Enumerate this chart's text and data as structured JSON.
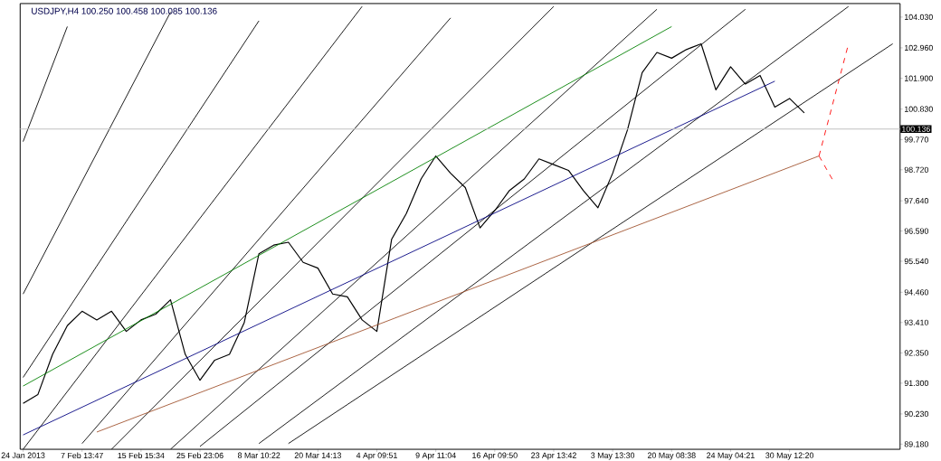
{
  "chart_data": {
    "type": "line",
    "title": "USDJPY,H4 100.250 100.458 100.085 100.136",
    "categories": [
      "24 Jan 2013",
      null,
      null,
      null,
      "7 Feb 13:47",
      null,
      null,
      null,
      "15 Feb 15:34",
      null,
      null,
      null,
      "25 Feb 23:06",
      null,
      null,
      null,
      "8 Mar 10:22",
      null,
      null,
      null,
      "20 Mar 14:13",
      null,
      null,
      null,
      "4 Apr 09:51",
      null,
      null,
      null,
      "9 Apr 11:04",
      null,
      null,
      null,
      "16 Apr 09:50",
      null,
      null,
      null,
      "23 Apr 13:42",
      null,
      null,
      null,
      "3 May 13:30",
      null,
      null,
      null,
      "20 May 08:38",
      null,
      null,
      null,
      "24 May 04:21",
      null,
      null,
      null,
      "30 May 12:20",
      null,
      null,
      null,
      null,
      null,
      null,
      null
    ],
    "ylim": [
      89.0,
      104.5
    ],
    "yticks": [
      {
        "value": 104.03,
        "label": "104.030"
      },
      {
        "value": 102.96,
        "label": "102.960"
      },
      {
        "value": 101.9,
        "label": "101.900"
      },
      {
        "value": 100.83,
        "label": "100.830"
      },
      {
        "value": 99.77,
        "label": "99.770"
      },
      {
        "value": 98.72,
        "label": "98.720"
      },
      {
        "value": 97.64,
        "label": "97.640"
      },
      {
        "value": 96.59,
        "label": "96.590"
      },
      {
        "value": 95.54,
        "label": "95.540"
      },
      {
        "value": 94.46,
        "label": "94.460"
      },
      {
        "value": 93.41,
        "label": "93.410"
      },
      {
        "value": 92.35,
        "label": "92.350"
      },
      {
        "value": 91.3,
        "label": "91.300"
      },
      {
        "value": 90.23,
        "label": "90.230"
      },
      {
        "value": 89.18,
        "label": "89.180"
      }
    ],
    "ref_lines": [
      {
        "axis": "y",
        "value": 100.136,
        "label": "100.136",
        "color": "#c0c0c0"
      }
    ],
    "series": [
      {
        "color": "#000000",
        "values": [
          90.6,
          90.9,
          92.3,
          93.3,
          93.8,
          93.5,
          93.8,
          93.1,
          93.5,
          93.7,
          94.2,
          92.3,
          91.4,
          92.1,
          92.3,
          93.4,
          95.8,
          96.1,
          96.2,
          95.5,
          95.3,
          94.4,
          94.3,
          93.5,
          93.1,
          96.3,
          97.2,
          98.4,
          99.2,
          98.6,
          98.1,
          96.7,
          97.3,
          98.0,
          98.4,
          99.1,
          98.9,
          98.7,
          98.0,
          97.4,
          98.6,
          100.1,
          102.1,
          102.8,
          102.6,
          102.9,
          103.1,
          101.5,
          102.3,
          101.7,
          102.0,
          100.9,
          101.2,
          100.7,
          null,
          null,
          null,
          null,
          null,
          null
        ]
      },
      {
        "type": "line",
        "color": "#000000",
        "values": [
          99.7,
          null,
          null,
          103.7,
          null,
          null,
          null,
          null,
          null,
          null,
          null,
          null,
          null,
          null,
          null,
          null,
          null,
          null,
          null,
          null,
          null,
          null,
          null,
          null,
          null,
          null,
          null,
          null,
          null,
          null,
          null,
          null,
          null,
          null,
          null,
          null,
          null,
          null,
          null,
          null,
          null,
          null,
          null,
          null,
          null,
          null,
          null,
          null,
          null,
          null,
          null,
          null,
          null,
          null,
          null,
          null,
          null,
          null,
          null,
          null
        ]
      },
      {
        "type": "line",
        "color": "#000000",
        "values": [
          94.4,
          null,
          null,
          null,
          null,
          null,
          null,
          null,
          null,
          null,
          104.2,
          null,
          null,
          null,
          null,
          null,
          null,
          null,
          null,
          null,
          null,
          null,
          null,
          null,
          null,
          null,
          null,
          null,
          null,
          null,
          null,
          null,
          null,
          null,
          null,
          null,
          null,
          null,
          null,
          null,
          null,
          null,
          null,
          null,
          null,
          null,
          null,
          null,
          null,
          null,
          null,
          null,
          null,
          null,
          null,
          null,
          null,
          null,
          null,
          null
        ]
      },
      {
        "type": "line",
        "color": "#000000",
        "values": [
          91.5,
          null,
          null,
          null,
          null,
          null,
          null,
          null,
          null,
          null,
          null,
          null,
          null,
          null,
          null,
          null,
          103.9,
          null,
          null,
          null,
          null,
          null,
          null,
          null,
          null,
          null,
          null,
          null,
          null,
          null,
          null,
          null,
          null,
          null,
          null,
          null,
          null,
          null,
          null,
          null,
          null,
          null,
          null,
          null,
          null,
          null,
          null,
          null,
          null,
          null,
          null,
          null,
          null,
          null,
          null,
          null,
          null,
          null,
          null,
          null
        ]
      },
      {
        "type": "line",
        "color": "#000000",
        "values": [
          89.0,
          null,
          null,
          null,
          null,
          null,
          null,
          null,
          null,
          null,
          null,
          null,
          null,
          null,
          null,
          null,
          null,
          null,
          null,
          null,
          null,
          null,
          null,
          104.4,
          null,
          null,
          null,
          null,
          null,
          null,
          null,
          null,
          null,
          null,
          null,
          null,
          null,
          null,
          null,
          null,
          null,
          null,
          null,
          null,
          null,
          null,
          null,
          null,
          null,
          null,
          null,
          null,
          null,
          null,
          null,
          null,
          null,
          null,
          null,
          null
        ]
      },
      {
        "type": "line",
        "color": "#000000",
        "values": [
          null,
          null,
          null,
          null,
          89.2,
          null,
          null,
          null,
          null,
          null,
          null,
          null,
          null,
          null,
          null,
          null,
          null,
          null,
          null,
          null,
          null,
          null,
          null,
          null,
          null,
          null,
          null,
          null,
          null,
          104.0,
          null,
          null,
          null,
          null,
          null,
          null,
          null,
          null,
          null,
          null,
          null,
          null,
          null,
          null,
          null,
          null,
          null,
          null,
          null,
          null,
          null,
          null,
          null,
          null,
          null,
          null,
          null,
          null,
          null,
          null
        ]
      },
      {
        "type": "line",
        "color": "#000000",
        "values": [
          null,
          null,
          null,
          null,
          null,
          null,
          89.0,
          null,
          null,
          null,
          null,
          null,
          null,
          null,
          null,
          null,
          null,
          null,
          null,
          null,
          null,
          null,
          null,
          null,
          null,
          null,
          null,
          null,
          null,
          null,
          null,
          null,
          null,
          null,
          null,
          null,
          104.4,
          null,
          null,
          null,
          null,
          null,
          null,
          null,
          null,
          null,
          null,
          null,
          null,
          null,
          null,
          null,
          null,
          null,
          null,
          null,
          null,
          null,
          null,
          null
        ]
      },
      {
        "type": "line",
        "color": "#000000",
        "values": [
          null,
          null,
          null,
          null,
          null,
          null,
          null,
          null,
          null,
          null,
          89.0,
          null,
          null,
          null,
          null,
          null,
          null,
          null,
          null,
          null,
          null,
          null,
          null,
          null,
          null,
          null,
          null,
          null,
          null,
          null,
          null,
          null,
          null,
          null,
          null,
          null,
          null,
          null,
          null,
          null,
          null,
          null,
          null,
          104.3,
          null,
          null,
          null,
          null,
          null,
          null,
          null,
          null,
          null,
          null,
          null,
          null,
          null,
          null,
          null,
          null
        ]
      },
      {
        "type": "line",
        "color": "#000000",
        "values": [
          null,
          null,
          null,
          null,
          null,
          null,
          null,
          null,
          null,
          null,
          null,
          null,
          89.1,
          null,
          null,
          null,
          null,
          null,
          null,
          null,
          null,
          null,
          null,
          null,
          null,
          null,
          null,
          null,
          null,
          null,
          null,
          null,
          null,
          null,
          null,
          null,
          null,
          null,
          null,
          null,
          null,
          null,
          null,
          null,
          null,
          null,
          null,
          null,
          null,
          104.3,
          null,
          null,
          null,
          null,
          null,
          null,
          null,
          null,
          null,
          null
        ]
      },
      {
        "type": "line",
        "color": "#000000",
        "values": [
          null,
          null,
          null,
          null,
          null,
          null,
          null,
          null,
          null,
          null,
          null,
          null,
          null,
          null,
          null,
          null,
          89.2,
          null,
          null,
          null,
          null,
          null,
          null,
          null,
          null,
          null,
          null,
          null,
          null,
          null,
          null,
          null,
          null,
          null,
          null,
          null,
          null,
          null,
          null,
          null,
          null,
          null,
          null,
          null,
          null,
          null,
          null,
          null,
          null,
          null,
          null,
          null,
          null,
          null,
          null,
          null,
          104.4,
          null,
          null,
          null
        ]
      },
      {
        "type": "line",
        "color": "#000000",
        "values": [
          null,
          null,
          null,
          null,
          null,
          null,
          null,
          null,
          null,
          null,
          null,
          null,
          null,
          null,
          null,
          null,
          null,
          null,
          89.2,
          null,
          null,
          null,
          null,
          null,
          null,
          null,
          null,
          null,
          null,
          null,
          null,
          null,
          null,
          null,
          null,
          null,
          null,
          null,
          null,
          null,
          null,
          null,
          null,
          null,
          null,
          null,
          null,
          null,
          null,
          null,
          null,
          null,
          null,
          null,
          null,
          null,
          null,
          null,
          null,
          103.1
        ]
      },
      {
        "type": "line",
        "color": "#008000",
        "values": [
          91.2,
          null,
          null,
          null,
          null,
          null,
          null,
          null,
          null,
          null,
          null,
          null,
          null,
          null,
          null,
          null,
          null,
          null,
          null,
          null,
          null,
          null,
          null,
          null,
          null,
          null,
          null,
          null,
          null,
          null,
          null,
          null,
          null,
          null,
          null,
          null,
          null,
          null,
          null,
          null,
          null,
          null,
          null,
          null,
          103.7,
          null,
          null,
          null,
          null,
          null,
          null,
          null,
          null,
          null,
          null,
          null,
          null,
          null,
          null,
          null
        ]
      },
      {
        "type": "line",
        "color": "#000080",
        "values": [
          89.5,
          null,
          null,
          null,
          null,
          null,
          null,
          null,
          null,
          null,
          null,
          null,
          null,
          null,
          null,
          null,
          null,
          null,
          null,
          null,
          null,
          null,
          null,
          null,
          null,
          null,
          null,
          null,
          null,
          null,
          null,
          null,
          null,
          null,
          null,
          null,
          null,
          null,
          null,
          null,
          null,
          null,
          null,
          null,
          null,
          null,
          null,
          null,
          null,
          null,
          null,
          101.8,
          null,
          null,
          null,
          null,
          null,
          null,
          null,
          null
        ]
      },
      {
        "type": "line",
        "color": "#a0522d",
        "values": [
          null,
          null,
          null,
          null,
          null,
          89.6,
          null,
          null,
          null,
          null,
          null,
          null,
          null,
          null,
          null,
          null,
          null,
          null,
          null,
          null,
          null,
          null,
          null,
          null,
          null,
          null,
          null,
          null,
          null,
          null,
          null,
          null,
          null,
          null,
          null,
          null,
          null,
          null,
          null,
          null,
          null,
          null,
          null,
          null,
          null,
          null,
          null,
          null,
          null,
          null,
          null,
          null,
          null,
          null,
          99.2,
          null,
          null,
          null,
          null,
          null
        ]
      },
      {
        "type": "line",
        "color": "#ff0000",
        "line_style": "dashed",
        "values": [
          null,
          null,
          null,
          null,
          null,
          null,
          null,
          null,
          null,
          null,
          null,
          null,
          null,
          null,
          null,
          null,
          null,
          null,
          null,
          null,
          null,
          null,
          null,
          null,
          null,
          null,
          null,
          null,
          null,
          null,
          null,
          null,
          null,
          null,
          null,
          null,
          null,
          null,
          null,
          null,
          null,
          null,
          null,
          null,
          null,
          null,
          null,
          null,
          null,
          null,
          null,
          null,
          null,
          null,
          99.2,
          null,
          103.1,
          null,
          null,
          null
        ]
      },
      {
        "type": "line",
        "color": "#ff0000",
        "line_style": "dashed",
        "values": [
          null,
          null,
          null,
          null,
          null,
          null,
          null,
          null,
          null,
          null,
          null,
          null,
          null,
          null,
          null,
          null,
          null,
          null,
          null,
          null,
          null,
          null,
          null,
          null,
          null,
          null,
          null,
          null,
          null,
          null,
          null,
          null,
          null,
          null,
          null,
          null,
          null,
          null,
          null,
          null,
          null,
          null,
          null,
          null,
          null,
          null,
          null,
          null,
          null,
          null,
          null,
          null,
          null,
          null,
          99.2,
          98.3,
          null,
          null,
          null,
          null
        ]
      }
    ]
  }
}
